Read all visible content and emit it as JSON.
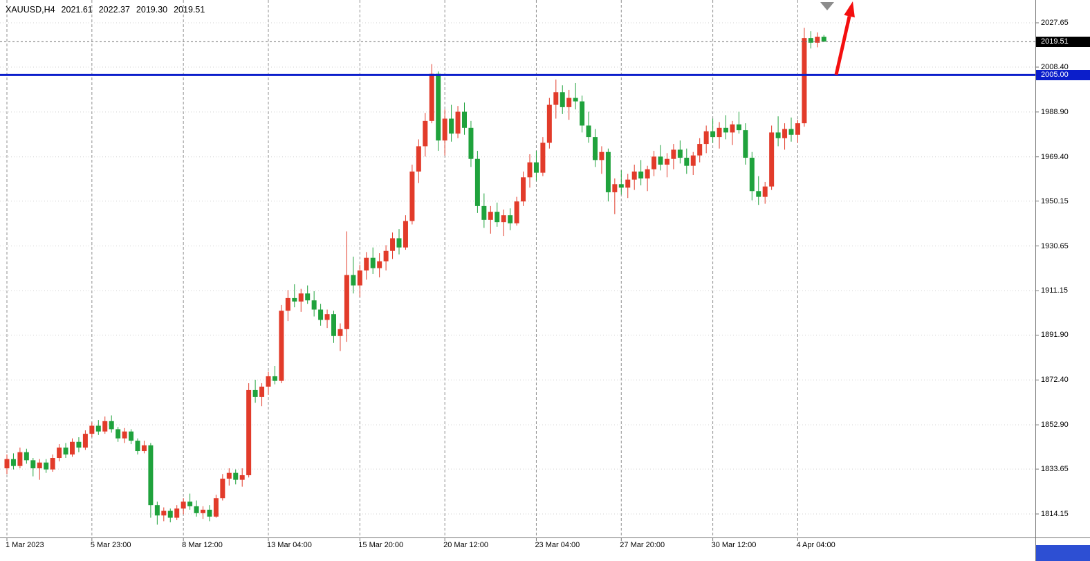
{
  "header": {
    "symbol_period": "XAUUSD,H4",
    "open": "2021.61",
    "high": "2022.37",
    "low": "2019.30",
    "close": "2019.51"
  },
  "y_axis": {
    "current_price": "2019.51",
    "line_price": "2005.00"
  },
  "colors": {
    "background": "#ffffff",
    "bull": "#e23b2a",
    "bear": "#1fa23c",
    "hline": "#0b1ecb",
    "bid_box_bg": "#000000",
    "hline_box_bg": "#0b1ecb",
    "arrow": "#f40f0f",
    "shift_marker": "#8c8c8c",
    "grid_vertical": "#8f8f8f",
    "grid_horizontal": "#d0d0d0",
    "bid_line": "#6e6e6e",
    "axis_line": "#767676",
    "axis_text": "#000000",
    "corner_box": "#2d4fd3"
  },
  "chart_data": {
    "type": "candlestick",
    "title": "XAUUSD,H4",
    "symbol": "XAUUSD",
    "timeframe": "H4",
    "legend_position": "none",
    "grid": true,
    "visible_price_range": [
      1803.9,
      2037.6
    ],
    "y_ticks": [
      "2027.65",
      "2008.40",
      "1988.90",
      "1969.40",
      "1950.15",
      "1930.65",
      "1911.15",
      "1891.90",
      "1872.40",
      "1852.90",
      "1833.65",
      "1814.15"
    ],
    "x_ticks": [
      {
        "label": "1 Mar 2023",
        "bar": 0
      },
      {
        "label": "5 Mar 23:00",
        "bar": 13
      },
      {
        "label": "8 Mar 12:00",
        "bar": 27
      },
      {
        "label": "13 Mar 04:00",
        "bar": 40
      },
      {
        "label": "15 Mar 20:00",
        "bar": 54
      },
      {
        "label": "20 Mar 12:00",
        "bar": 67
      },
      {
        "label": "23 Mar 04:00",
        "bar": 81
      },
      {
        "label": "27 Mar 20:00",
        "bar": 94
      },
      {
        "label": "30 Mar 12:00",
        "bar": 108
      },
      {
        "label": "4 Apr 04:00",
        "bar": 121
      }
    ],
    "overlays": {
      "horizontal_line": {
        "price": 2005.0,
        "label": "2005.00"
      },
      "bid": {
        "price": 2019.51,
        "label": "2019.51"
      },
      "trend_arrow": "red-up-arrow",
      "shift_marker": "gray-down-triangle"
    },
    "ohlc_current": {
      "open": 2021.61,
      "high": 2022.37,
      "low": 2019.3,
      "close": 2019.51
    },
    "candles": [
      [
        1834.0,
        1840.0,
        1831.5,
        1838.0
      ],
      [
        1838.0,
        1840.5,
        1833.5,
        1835.0
      ],
      [
        1835.0,
        1843.0,
        1834.0,
        1841.0
      ],
      [
        1841.0,
        1842.5,
        1836.0,
        1837.5
      ],
      [
        1837.5,
        1838.5,
        1830.5,
        1834.0
      ],
      [
        1834.0,
        1838.0,
        1829.0,
        1836.5
      ],
      [
        1836.5,
        1838.0,
        1832.0,
        1833.5
      ],
      [
        1833.5,
        1840.0,
        1832.5,
        1838.5
      ],
      [
        1838.5,
        1844.5,
        1837.0,
        1843.0
      ],
      [
        1843.0,
        1845.0,
        1838.5,
        1840.0
      ],
      [
        1840.0,
        1847.0,
        1839.0,
        1845.5
      ],
      [
        1845.5,
        1847.5,
        1841.0,
        1843.0
      ],
      [
        1843.0,
        1850.5,
        1842.0,
        1849.0
      ],
      [
        1849.0,
        1854.0,
        1847.5,
        1852.5
      ],
      [
        1852.5,
        1855.0,
        1848.5,
        1850.0
      ],
      [
        1850.0,
        1856.5,
        1849.0,
        1854.5
      ],
      [
        1854.5,
        1857.0,
        1849.5,
        1851.0
      ],
      [
        1851.0,
        1852.0,
        1845.5,
        1847.0
      ],
      [
        1847.0,
        1851.5,
        1845.0,
        1850.0
      ],
      [
        1850.0,
        1851.0,
        1844.5,
        1846.0
      ],
      [
        1846.0,
        1847.0,
        1840.0,
        1841.5
      ],
      [
        1841.5,
        1846.0,
        1840.5,
        1844.0
      ],
      [
        1844.0,
        1845.0,
        1812.5,
        1818.0
      ],
      [
        1818.0,
        1819.5,
        1809.5,
        1813.5
      ],
      [
        1813.5,
        1817.0,
        1811.0,
        1815.5
      ],
      [
        1815.5,
        1816.5,
        1810.5,
        1812.5
      ],
      [
        1812.5,
        1818.0,
        1811.5,
        1816.5
      ],
      [
        1816.5,
        1821.0,
        1814.0,
        1819.5
      ],
      [
        1819.5,
        1823.0,
        1816.0,
        1817.5
      ],
      [
        1817.5,
        1820.0,
        1813.0,
        1814.5
      ],
      [
        1814.5,
        1817.5,
        1812.0,
        1816.0
      ],
      [
        1816.0,
        1818.0,
        1811.0,
        1813.0
      ],
      [
        1813.0,
        1822.5,
        1812.5,
        1821.0
      ],
      [
        1821.0,
        1831.5,
        1820.0,
        1829.5
      ],
      [
        1829.5,
        1834.0,
        1826.5,
        1832.0
      ],
      [
        1832.0,
        1833.5,
        1827.0,
        1829.0
      ],
      [
        1829.0,
        1834.0,
        1826.0,
        1831.0
      ],
      [
        1831.0,
        1871.0,
        1830.0,
        1868.0
      ],
      [
        1868.0,
        1872.5,
        1862.5,
        1865.0
      ],
      [
        1865.0,
        1871.0,
        1861.0,
        1869.5
      ],
      [
        1869.5,
        1876.0,
        1866.0,
        1874.0
      ],
      [
        1874.0,
        1878.5,
        1870.5,
        1872.0
      ],
      [
        1872.0,
        1905.0,
        1871.0,
        1902.5
      ],
      [
        1902.5,
        1911.5,
        1898.0,
        1908.0
      ],
      [
        1908.0,
        1914.0,
        1904.0,
        1906.5
      ],
      [
        1906.5,
        1912.0,
        1902.0,
        1910.0
      ],
      [
        1910.0,
        1913.5,
        1905.5,
        1907.0
      ],
      [
        1907.0,
        1911.0,
        1900.0,
        1903.0
      ],
      [
        1903.0,
        1905.5,
        1896.0,
        1898.5
      ],
      [
        1898.5,
        1903.0,
        1895.0,
        1901.0
      ],
      [
        1901.0,
        1902.5,
        1888.5,
        1891.5
      ],
      [
        1891.5,
        1897.0,
        1885.0,
        1894.5
      ],
      [
        1894.5,
        1937.0,
        1889.0,
        1918.0
      ],
      [
        1918.0,
        1926.0,
        1910.0,
        1913.5
      ],
      [
        1913.5,
        1922.5,
        1908.5,
        1920.0
      ],
      [
        1920.0,
        1928.0,
        1916.0,
        1925.5
      ],
      [
        1925.5,
        1930.0,
        1918.5,
        1921.0
      ],
      [
        1921.0,
        1927.5,
        1917.0,
        1924.0
      ],
      [
        1924.0,
        1931.0,
        1920.0,
        1928.5
      ],
      [
        1928.5,
        1936.5,
        1925.0,
        1934.0
      ],
      [
        1934.0,
        1938.0,
        1927.0,
        1930.0
      ],
      [
        1930.0,
        1944.0,
        1929.0,
        1941.5
      ],
      [
        1941.5,
        1966.0,
        1940.0,
        1963.0
      ],
      [
        1963.0,
        1977.0,
        1958.0,
        1974.0
      ],
      [
        1974.0,
        1988.5,
        1969.5,
        1985.0
      ],
      [
        1985.0,
        2009.7,
        1984.0,
        2005.5
      ],
      [
        2005.5,
        2006.5,
        1972.0,
        1976.5
      ],
      [
        1976.5,
        1990.0,
        1970.0,
        1986.0
      ],
      [
        1986.0,
        1992.0,
        1976.0,
        1979.5
      ],
      [
        1979.5,
        1991.5,
        1977.5,
        1989.0
      ],
      [
        1989.0,
        1993.0,
        1979.0,
        1982.0
      ],
      [
        1982.0,
        1985.0,
        1965.0,
        1968.5
      ],
      [
        1968.5,
        1972.0,
        1945.0,
        1948.0
      ],
      [
        1948.0,
        1953.5,
        1938.5,
        1942.0
      ],
      [
        1942.0,
        1948.0,
        1936.0,
        1945.5
      ],
      [
        1945.5,
        1949.5,
        1939.0,
        1941.0
      ],
      [
        1941.0,
        1946.5,
        1935.0,
        1944.0
      ],
      [
        1944.0,
        1947.0,
        1937.5,
        1940.5
      ],
      [
        1940.5,
        1952.0,
        1939.5,
        1950.0
      ],
      [
        1950.0,
        1963.0,
        1948.0,
        1960.5
      ],
      [
        1960.5,
        1970.5,
        1956.0,
        1967.0
      ],
      [
        1967.0,
        1972.0,
        1959.0,
        1962.5
      ],
      [
        1962.5,
        1978.0,
        1961.0,
        1975.5
      ],
      [
        1975.5,
        1995.0,
        1973.0,
        1992.0
      ],
      [
        1992.0,
        2003.0,
        1986.0,
        1997.5
      ],
      [
        1997.5,
        2000.5,
        1988.0,
        1991.0
      ],
      [
        1991.0,
        1998.5,
        1985.5,
        1995.0
      ],
      [
        1995.0,
        2001.5,
        1990.0,
        1993.5
      ],
      [
        1993.5,
        1996.0,
        1980.0,
        1983.0
      ],
      [
        1983.0,
        1989.0,
        1975.5,
        1978.0
      ],
      [
        1978.0,
        1981.5,
        1965.0,
        1968.0
      ],
      [
        1968.0,
        1974.0,
        1962.0,
        1971.5
      ],
      [
        1971.5,
        1973.0,
        1950.0,
        1954.0
      ],
      [
        1954.0,
        1960.0,
        1944.5,
        1957.5
      ],
      [
        1957.5,
        1963.5,
        1953.0,
        1956.0
      ],
      [
        1956.0,
        1962.0,
        1951.5,
        1959.5
      ],
      [
        1959.5,
        1966.0,
        1955.0,
        1963.0
      ],
      [
        1963.0,
        1968.0,
        1957.0,
        1960.0
      ],
      [
        1960.0,
        1965.5,
        1954.5,
        1964.0
      ],
      [
        1964.0,
        1972.0,
        1961.0,
        1969.5
      ],
      [
        1969.5,
        1974.5,
        1963.5,
        1966.0
      ],
      [
        1966.0,
        1971.0,
        1960.5,
        1968.5
      ],
      [
        1968.5,
        1975.0,
        1964.0,
        1972.5
      ],
      [
        1972.5,
        1976.5,
        1966.5,
        1969.0
      ],
      [
        1969.0,
        1973.0,
        1962.0,
        1965.5
      ],
      [
        1965.5,
        1971.5,
        1961.5,
        1970.0
      ],
      [
        1970.0,
        1977.5,
        1967.0,
        1975.0
      ],
      [
        1975.0,
        1983.0,
        1971.0,
        1980.5
      ],
      [
        1980.5,
        1986.0,
        1975.5,
        1978.0
      ],
      [
        1978.0,
        1984.5,
        1973.0,
        1982.0
      ],
      [
        1982.0,
        1987.5,
        1977.0,
        1980.0
      ],
      [
        1980.0,
        1985.0,
        1974.5,
        1983.5
      ],
      [
        1983.5,
        1989.0,
        1979.5,
        1981.0
      ],
      [
        1981.0,
        1984.0,
        1966.0,
        1969.0
      ],
      [
        1969.0,
        1971.5,
        1950.5,
        1954.5
      ],
      [
        1954.5,
        1961.0,
        1948.5,
        1952.0
      ],
      [
        1952.0,
        1958.5,
        1949.0,
        1956.5
      ],
      [
        1956.5,
        1983.0,
        1955.0,
        1980.0
      ],
      [
        1980.0,
        1987.0,
        1974.0,
        1977.5
      ],
      [
        1977.5,
        1984.0,
        1972.5,
        1981.5
      ],
      [
        1981.5,
        1986.5,
        1976.0,
        1979.0
      ],
      [
        1979.0,
        1985.5,
        1975.5,
        1984.0
      ],
      [
        1984.0,
        2025.5,
        1982.5,
        2021.0
      ],
      [
        2021.0,
        2024.0,
        2016.5,
        2019.0
      ],
      [
        2019.0,
        2023.5,
        2017.0,
        2021.61
      ],
      [
        2021.61,
        2022.37,
        2019.3,
        2019.51
      ]
    ]
  }
}
